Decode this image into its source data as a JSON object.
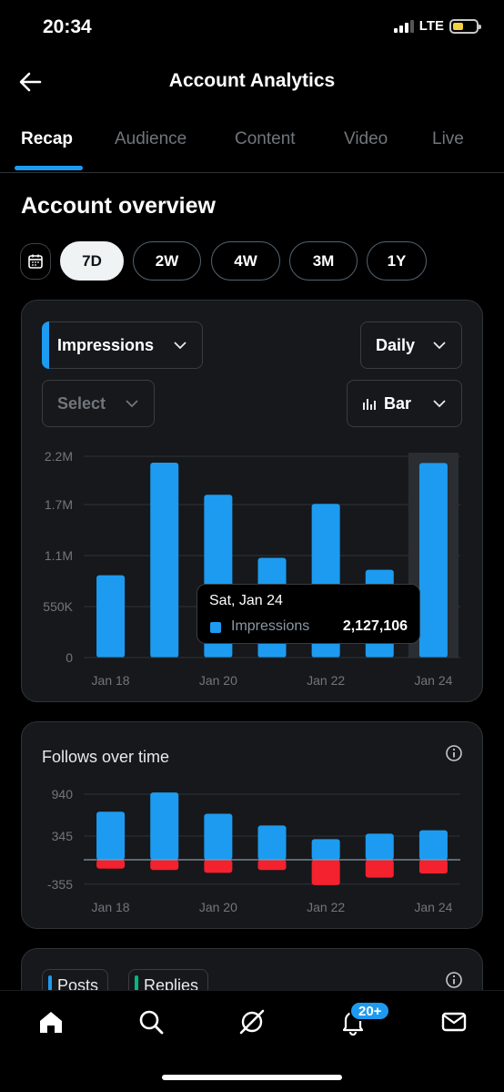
{
  "status_bar": {
    "time": "20:34",
    "network": "LTE"
  },
  "header": {
    "title": "Account Analytics"
  },
  "tabs": [
    {
      "label": "Recap",
      "active": true
    },
    {
      "label": "Audience"
    },
    {
      "label": "Content"
    },
    {
      "label": "Video"
    },
    {
      "label": "Live"
    }
  ],
  "overview": {
    "title": "Account overview",
    "ranges": [
      "7D",
      "2W",
      "4W",
      "3M",
      "1Y"
    ],
    "selected_range": "7D"
  },
  "impressions_card": {
    "metric_label": "Impressions",
    "interval_label": "Daily",
    "compare_placeholder": "Select",
    "chart_type_label": "Bar",
    "tooltip": {
      "date": "Sat, Jan 24",
      "series": "Impressions",
      "value": "2,127,106"
    }
  },
  "follows_card": {
    "title": "Follows over time"
  },
  "posts_card": {
    "chips": [
      "Posts",
      "Replies"
    ]
  },
  "bottom_nav": {
    "notifications_badge": "20+"
  },
  "colors": {
    "accent": "#1d9bf0",
    "negative": "#f4212e",
    "posts_chip": "#1d9bf0",
    "replies_chip": "#00ba7c"
  },
  "chart_data": [
    {
      "type": "bar",
      "title": "Impressions",
      "x_labels": [
        "Jan 18",
        "Jan 20",
        "Jan 22",
        "Jan 24"
      ],
      "categories": [
        "Jan 18",
        "Jan 19",
        "Jan 20",
        "Jan 21",
        "Jan 22",
        "Jan 23",
        "Jan 24"
      ],
      "values": [
        900000,
        2130000,
        1780000,
        1090000,
        1680000,
        960000,
        2127106
      ],
      "y_ticks": [
        "2.2M",
        "1.7M",
        "1.1M",
        "550K",
        "0"
      ],
      "ylim": [
        0,
        2200000
      ],
      "highlighted_index": 6
    },
    {
      "type": "bar",
      "title": "Follows over time",
      "x_labels": [
        "Jan 18",
        "Jan 20",
        "Jan 22",
        "Jan 24"
      ],
      "categories": [
        "Jan 18",
        "Jan 19",
        "Jan 20",
        "Jan 21",
        "Jan 22",
        "Jan 23",
        "Jan 24"
      ],
      "series": [
        {
          "values": [
            700,
            980,
            670,
            500,
            300,
            380,
            430
          ]
        },
        {
          "values": [
            -130,
            -150,
            -190,
            -150,
            -370,
            -260,
            -200
          ]
        }
      ],
      "y_ticks": [
        "940",
        "345",
        "-355"
      ],
      "ylim": [
        -380,
        1000
      ]
    }
  ]
}
